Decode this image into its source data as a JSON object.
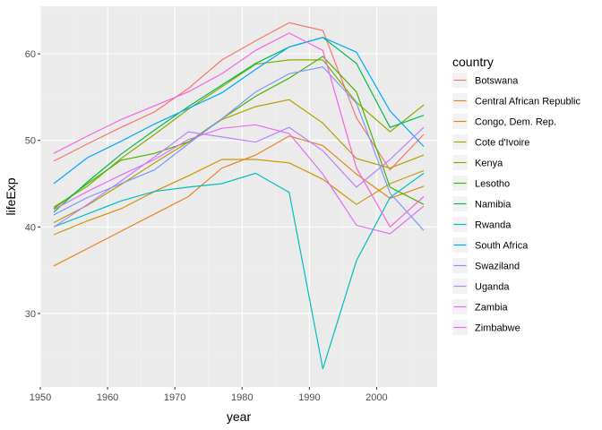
{
  "chart_data": {
    "type": "line",
    "title": "",
    "xlabel": "year",
    "ylabel": "lifeExp",
    "xlim": [
      1950,
      2009
    ],
    "ylim": [
      21.5,
      65.5
    ],
    "x_ticks": [
      1950,
      1960,
      1970,
      1980,
      1990,
      2000
    ],
    "y_ticks": [
      30,
      40,
      50,
      60
    ],
    "grid": true,
    "legend_title": "country",
    "legend_position": "right",
    "x": [
      1952,
      1957,
      1962,
      1967,
      1972,
      1977,
      1982,
      1987,
      1992,
      1997,
      2002,
      2007
    ],
    "series": [
      {
        "name": "Botswana",
        "color": "#F8766D",
        "values": [
          47.6,
          49.6,
          51.5,
          53.3,
          56.0,
          59.3,
          61.5,
          63.6,
          62.7,
          52.6,
          46.6,
          50.7
        ]
      },
      {
        "name": "Central African Republic",
        "color": "#E7851E",
        "values": [
          35.5,
          37.5,
          39.5,
          41.5,
          43.5,
          46.8,
          48.3,
          50.5,
          49.4,
          46.1,
          43.3,
          44.7
        ]
      },
      {
        "name": "Congo, Dem. Rep.",
        "color": "#D09400",
        "values": [
          39.1,
          40.7,
          42.1,
          44.1,
          45.9,
          47.8,
          47.8,
          47.4,
          45.5,
          42.6,
          45.0,
          46.5
        ]
      },
      {
        "name": "Cote d'Ivoire",
        "color": "#B2A100",
        "values": [
          40.5,
          42.5,
          44.9,
          47.4,
          49.8,
          52.4,
          53.9,
          54.7,
          52.0,
          47.9,
          46.8,
          48.3
        ]
      },
      {
        "name": "Kenya",
        "color": "#89AC00",
        "values": [
          42.3,
          44.7,
          47.9,
          50.7,
          53.6,
          56.2,
          58.8,
          59.3,
          59.3,
          54.4,
          51.0,
          54.1
        ]
      },
      {
        "name": "Lesotho",
        "color": "#45B500",
        "values": [
          42.1,
          45.0,
          47.7,
          48.5,
          49.8,
          52.5,
          55.1,
          57.2,
          59.7,
          55.6,
          44.6,
          42.6
        ]
      },
      {
        "name": "Namibia",
        "color": "#00BC51",
        "values": [
          41.7,
          45.2,
          48.4,
          51.2,
          53.9,
          56.4,
          58.9,
          60.8,
          61.9,
          58.9,
          51.5,
          52.9
        ]
      },
      {
        "name": "Rwanda",
        "color": "#00BDC2",
        "values": [
          40.0,
          41.5,
          43.0,
          44.1,
          44.6,
          45.0,
          46.2,
          44.0,
          23.6,
          36.1,
          43.4,
          46.2
        ]
      },
      {
        "name": "South Africa",
        "color": "#00A7FF",
        "values": [
          45.0,
          48.0,
          49.9,
          51.9,
          53.7,
          55.5,
          58.2,
          60.8,
          61.9,
          60.2,
          53.4,
          49.3
        ]
      },
      {
        "name": "Swaziland",
        "color": "#7F96FF",
        "values": [
          41.4,
          43.4,
          44.99,
          46.6,
          49.6,
          52.5,
          55.6,
          57.7,
          58.5,
          54.3,
          43.9,
          39.6
        ]
      },
      {
        "name": "Uganda",
        "color": "#BC81FF",
        "values": [
          39.98,
          42.6,
          45.3,
          48.1,
          51.0,
          50.4,
          49.8,
          51.5,
          48.8,
          44.6,
          47.8,
          51.5
        ]
      },
      {
        "name": "Zambia",
        "color": "#E26EF7",
        "values": [
          42.0,
          44.1,
          46.0,
          47.8,
          50.1,
          51.4,
          51.8,
          50.8,
          46.1,
          40.2,
          39.2,
          42.4
        ]
      },
      {
        "name": "Zimbabwe",
        "color": "#F863DF",
        "values": [
          48.5,
          50.5,
          52.4,
          54.0,
          55.6,
          57.7,
          60.4,
          62.4,
          60.4,
          46.8,
          40.0,
          43.5
        ]
      }
    ]
  }
}
